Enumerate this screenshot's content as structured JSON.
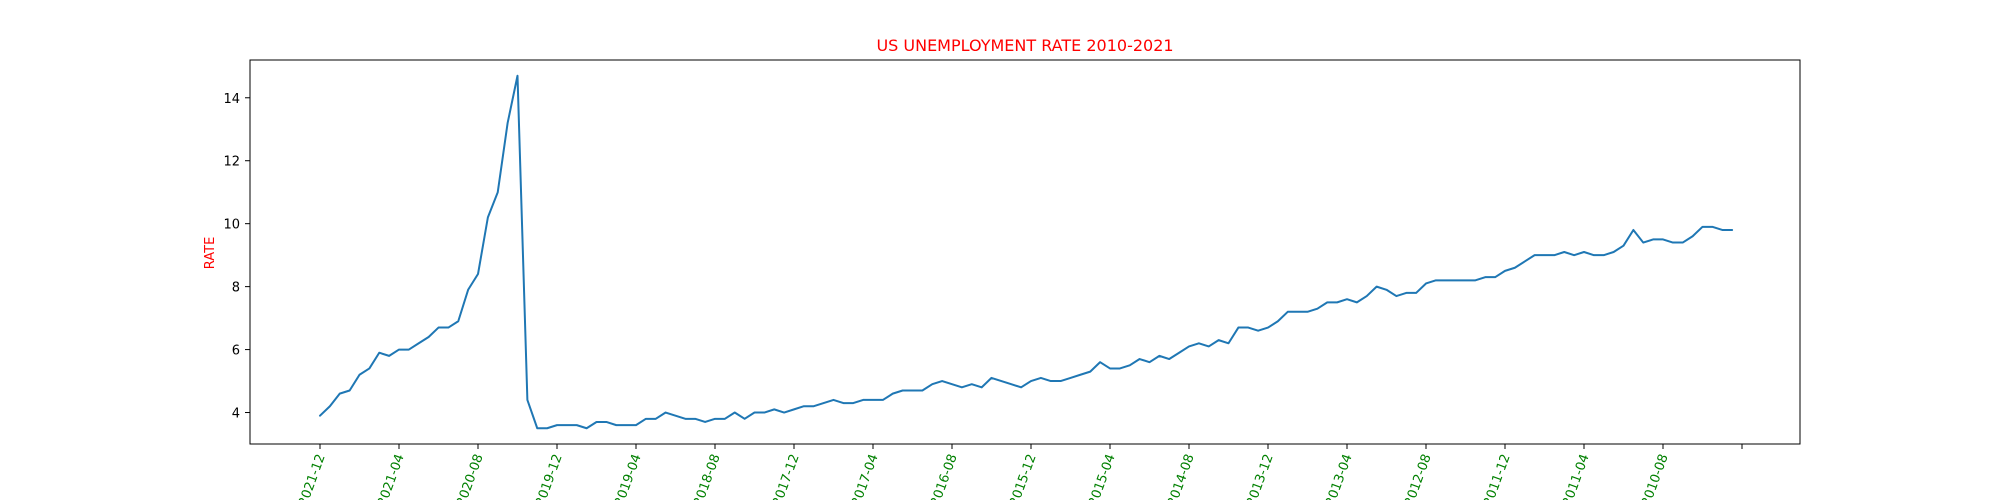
{
  "chart_data": {
    "type": "line",
    "title": "US UNEMPLOYMENT RATE 2010-2021",
    "xlabel": "",
    "ylabel": "RATE",
    "ylim": [
      3.0,
      15.2
    ],
    "yticks": [
      4,
      6,
      8,
      10,
      12,
      14
    ],
    "grid": false,
    "x_order": "newest-first (2021-12 at left, 2010-01 at right)",
    "xtick_labels": [
      "2021-12",
      "2021-04",
      "2020-08",
      "2019-12",
      "2019-04",
      "2018-08",
      "2017-12",
      "2017-04",
      "2016-08",
      "2015-12",
      "2015-04",
      "2014-08",
      "2013-12",
      "2013-04",
      "2012-08",
      "2011-12",
      "2011-04",
      "2010-08",
      ""
    ],
    "colors": {
      "title": "#ff0000",
      "ylabel": "#ff0000",
      "xtick_labels": "#008000",
      "line": "#1f77b4"
    },
    "series": [
      {
        "x_start": "2021-12",
        "x_end": "2010-01",
        "values": [
          3.9,
          4.2,
          4.6,
          4.7,
          5.2,
          5.4,
          5.9,
          5.8,
          6.0,
          6.0,
          6.2,
          6.4,
          6.7,
          6.7,
          6.9,
          7.9,
          8.4,
          10.2,
          11.0,
          13.2,
          14.7,
          4.4,
          3.5,
          3.5,
          3.6,
          3.6,
          3.6,
          3.5,
          3.7,
          3.7,
          3.6,
          3.6,
          3.6,
          3.8,
          3.8,
          4.0,
          3.9,
          3.8,
          3.8,
          3.7,
          3.8,
          3.8,
          4.0,
          3.8,
          4.0,
          4.0,
          4.1,
          4.0,
          4.1,
          4.2,
          4.2,
          4.3,
          4.4,
          4.3,
          4.3,
          4.4,
          4.4,
          4.4,
          4.6,
          4.7,
          4.7,
          4.7,
          4.9,
          5.0,
          4.9,
          4.8,
          4.9,
          4.8,
          5.1,
          5.0,
          4.9,
          4.8,
          5.0,
          5.1,
          5.0,
          5.0,
          5.1,
          5.2,
          5.3,
          5.6,
          5.4,
          5.4,
          5.5,
          5.7,
          5.6,
          5.8,
          5.7,
          5.9,
          6.1,
          6.2,
          6.1,
          6.3,
          6.2,
          6.7,
          6.7,
          6.6,
          6.7,
          6.9,
          7.2,
          7.2,
          7.2,
          7.3,
          7.5,
          7.5,
          7.6,
          7.5,
          7.7,
          8.0,
          7.9,
          7.7,
          7.8,
          7.8,
          8.1,
          8.2,
          8.2,
          8.2,
          8.2,
          8.2,
          8.3,
          8.3,
          8.5,
          8.6,
          8.8,
          9.0,
          9.0,
          9.0,
          9.1,
          9.0,
          9.1,
          9.0,
          9.0,
          9.1,
          9.3,
          9.8,
          9.4,
          9.5,
          9.5,
          9.4,
          9.4,
          9.6,
          9.9,
          9.9,
          9.8,
          9.8
        ]
      }
    ]
  }
}
